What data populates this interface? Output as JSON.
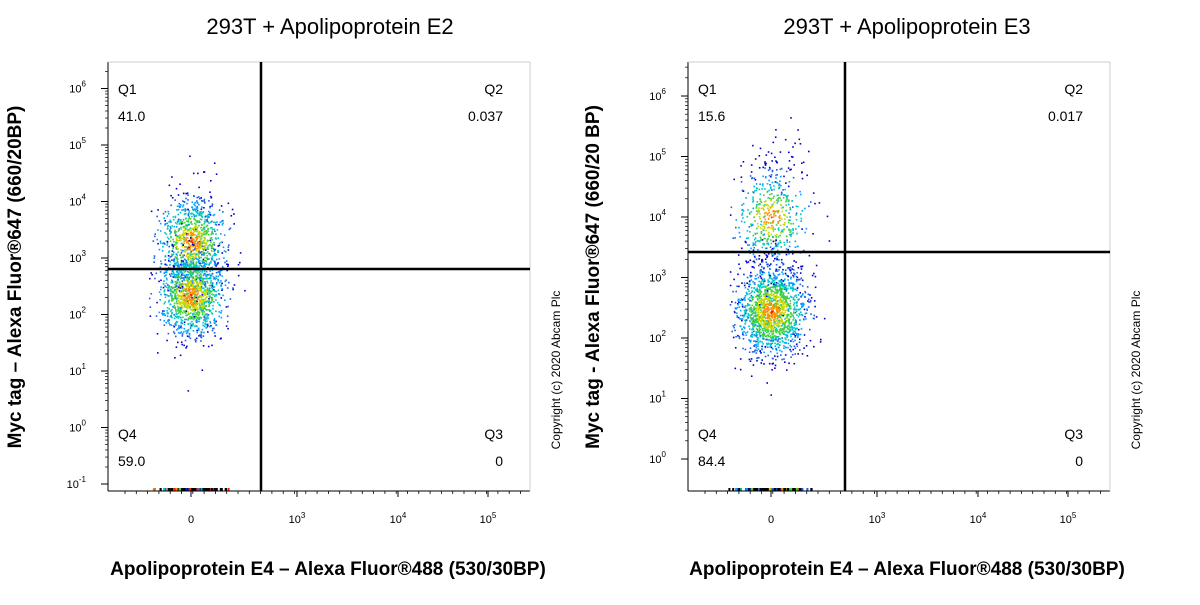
{
  "chart_data": [
    {
      "type": "scatter",
      "title": "293T + Apolipoprotein E2",
      "xlabel": "Apolipoprotein E4 – Alexa Fluor®488 (530/30BP)",
      "ylabel": "Myc tag – Alexa Fluor®647 (660/20BP)",
      "x_ticks": [
        {
          "base": "0",
          "exp": ""
        },
        {
          "base": "10",
          "exp": "3"
        },
        {
          "base": "10",
          "exp": "4"
        },
        {
          "base": "10",
          "exp": "5"
        }
      ],
      "y_ticks": [
        {
          "base": "10",
          "exp": "-1"
        },
        {
          "base": "10",
          "exp": "0"
        },
        {
          "base": "10",
          "exp": "1"
        },
        {
          "base": "10",
          "exp": "2"
        },
        {
          "base": "10",
          "exp": "3"
        },
        {
          "base": "10",
          "exp": "4"
        },
        {
          "base": "10",
          "exp": "5"
        },
        {
          "base": "10",
          "exp": "6"
        }
      ],
      "gate": {
        "x": 600,
        "y": 900
      },
      "quadrants": [
        {
          "name": "Q1",
          "value": "41.0"
        },
        {
          "name": "Q2",
          "value": "0.037"
        },
        {
          "name": "Q3",
          "value": "0"
        },
        {
          "name": "Q4",
          "value": "59.0"
        }
      ],
      "population": {
        "x_center": 0,
        "log_y_high": 3.3,
        "log_y_low": 2.35
      },
      "copyright": "Copyright (c) 2020 Abcam Plc"
    },
    {
      "type": "scatter",
      "title": "293T + Apolipoprotein E3",
      "xlabel": "Apolipoprotein E4 – Alexa Fluor®488 (530/30BP)",
      "ylabel": "Myc tag - Alexa Fluor®647 (660/20 BP)",
      "x_ticks": [
        {
          "base": "0",
          "exp": ""
        },
        {
          "base": "10",
          "exp": "3"
        },
        {
          "base": "10",
          "exp": "4"
        },
        {
          "base": "10",
          "exp": "5"
        }
      ],
      "y_ticks": [
        {
          "base": "10",
          "exp": "0"
        },
        {
          "base": "10",
          "exp": "1"
        },
        {
          "base": "10",
          "exp": "2"
        },
        {
          "base": "10",
          "exp": "3"
        },
        {
          "base": "10",
          "exp": "4"
        },
        {
          "base": "10",
          "exp": "5"
        },
        {
          "base": "10",
          "exp": "6"
        }
      ],
      "gate": {
        "x": 600,
        "y": 3000
      },
      "quadrants": [
        {
          "name": "Q1",
          "value": "15.6"
        },
        {
          "name": "Q2",
          "value": "0.017"
        },
        {
          "name": "Q3",
          "value": "0"
        },
        {
          "name": "Q4",
          "value": "84.4"
        }
      ],
      "population": {
        "x_center": 0,
        "log_y_high": 4.0,
        "log_y_low": 2.45
      },
      "copyright": "Copyright (c) 2020 Abcam Plc"
    }
  ]
}
